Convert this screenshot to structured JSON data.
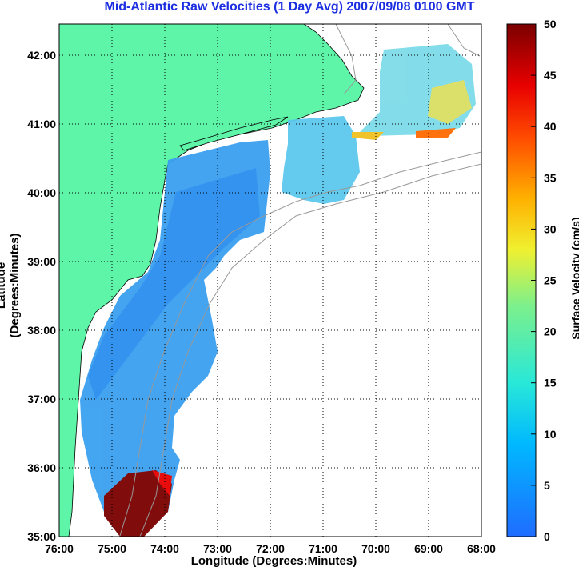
{
  "title": "Mid-Atlantic Raw Velocities (1 Day Avg) 2007/09/08 0100 GMT",
  "xlabel": "Longitude (Degrees:Minutes)",
  "ylabel": "Latitude (Degrees:Minutes)",
  "colorbar": {
    "label": "Surface Velocity (cm/s)",
    "min": 0,
    "max": 50,
    "ticks": [
      "0",
      "5",
      "10",
      "15",
      "20",
      "25",
      "30",
      "35",
      "40",
      "45",
      "50"
    ]
  },
  "x_ticks": [
    "76:00",
    "75:00",
    "74:00",
    "73:00",
    "72:00",
    "71:00",
    "70:00",
    "69:00",
    "68:00"
  ],
  "y_ticks": [
    "35:00",
    "36:00",
    "37:00",
    "38:00",
    "39:00",
    "40:00",
    "41:00",
    "42:00"
  ],
  "colors": {
    "land": "#5ff5a8",
    "title": "#1b2de0",
    "grid": "#000000"
  }
}
